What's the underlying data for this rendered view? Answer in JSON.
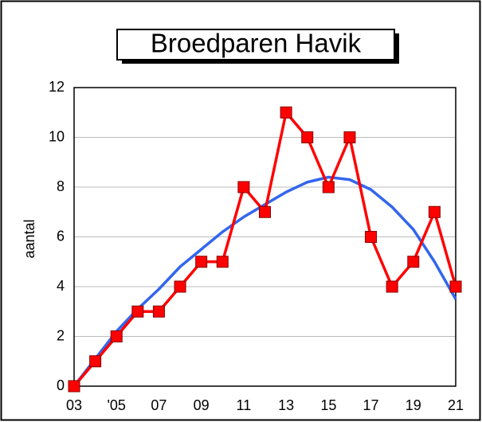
{
  "chart_data": {
    "type": "line",
    "title": "Broedparen Havik",
    "y_label": "aantal",
    "categories": [
      "03",
      null,
      "'05",
      null,
      "07",
      null,
      "09",
      null,
      "11",
      null,
      "13",
      null,
      "15",
      null,
      "17",
      null,
      "19",
      null,
      "21"
    ],
    "series": [
      {
        "color": "#ff0000",
        "marker": "square",
        "values": [
          0,
          1,
          2,
          3,
          3,
          4,
          5,
          5,
          8,
          7,
          11,
          10,
          8,
          10,
          6,
          4,
          5,
          7,
          4
        ]
      },
      {
        "color": "#3366ee",
        "values": [
          0,
          1.1,
          2.2,
          3.1,
          3.9,
          4.8,
          5.5,
          6.2,
          6.8,
          7.3,
          7.8,
          8.2,
          8.4,
          8.3,
          7.9,
          7.2,
          6.3,
          5.0,
          3.5
        ]
      }
    ],
    "ylim": [
      0,
      12
    ],
    "yticks": [
      0,
      2,
      4,
      6,
      8,
      10,
      12
    ],
    "grid": true
  }
}
